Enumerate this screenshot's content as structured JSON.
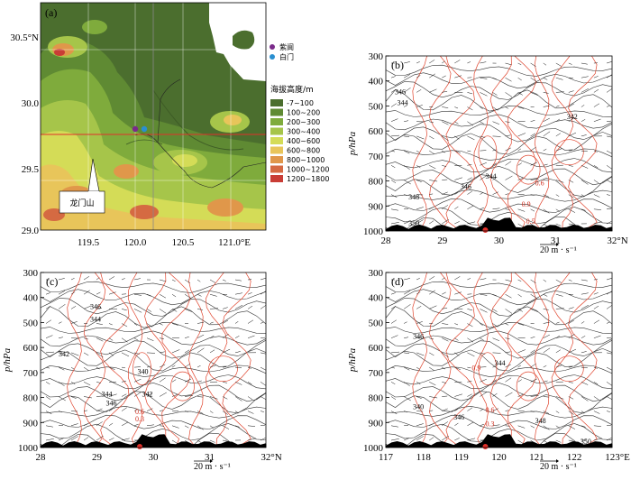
{
  "panel_a": {
    "letter": "(a)",
    "y_ticks": [
      "30.5°N",
      "30.0",
      "29.5",
      "29.0"
    ],
    "x_ticks": [
      "119.5",
      "120.0",
      "120.5",
      "121.0°E"
    ],
    "stations": [
      {
        "name": "紫阆",
        "color": "#7a2a8a"
      },
      {
        "name": "白门",
        "color": "#2a8fd0"
      }
    ],
    "legend_title": "海拔高度/m",
    "legend": [
      {
        "label": "-7~100",
        "color": "#4b6e2e"
      },
      {
        "label": "100~200",
        "color": "#5f8a33"
      },
      {
        "label": "200~300",
        "color": "#7fab3c"
      },
      {
        "label": "300~400",
        "color": "#a6c54a"
      },
      {
        "label": "400~600",
        "color": "#d4dc57"
      },
      {
        "label": "600~800",
        "color": "#e8c55a"
      },
      {
        "label": "800~1000",
        "color": "#e0974a"
      },
      {
        "label": "1000~1200",
        "color": "#d56a42"
      },
      {
        "label": "1200~1800",
        "color": "#c93d36"
      }
    ],
    "callout": "龙门山"
  },
  "panel_b": {
    "letter": "(b)",
    "x_ticks": [
      "28",
      "29",
      "30",
      "31",
      "32°N"
    ],
    "y_ticks": [
      "300",
      "400",
      "500",
      "600",
      "700",
      "800",
      "900",
      "1000"
    ],
    "ylabel": "p/hPa",
    "ref_vector": "20  m · s⁻¹",
    "contour_labels": [
      "346",
      "344",
      "342",
      "346",
      "344",
      "348",
      "350",
      "0.6",
      "0.9",
      "0.5"
    ]
  },
  "panel_c": {
    "letter": "(c)",
    "x_ticks": [
      "28",
      "29",
      "30",
      "31",
      "32°N"
    ],
    "y_ticks": [
      "300",
      "400",
      "500",
      "600",
      "700",
      "800",
      "900",
      "1000"
    ],
    "ylabel": "p/hPa",
    "ref_vector": "20  m · s⁻¹",
    "contour_labels": [
      "346",
      "344",
      "342",
      "340",
      "344",
      "346",
      "342",
      "0.6",
      "0.3"
    ]
  },
  "panel_d": {
    "letter": "(d)",
    "x_ticks": [
      "117",
      "118",
      "119",
      "120",
      "121",
      "122",
      "123°E"
    ],
    "y_ticks": [
      "300",
      "400",
      "500",
      "600",
      "700",
      "800",
      "900",
      "1000"
    ],
    "ylabel": "p/hPa",
    "ref_vector": "20  m · s⁻¹",
    "contour_labels": [
      "346",
      "344",
      "0.9",
      "340",
      "346",
      "348",
      "350",
      "0.6",
      "0.3"
    ]
  }
}
